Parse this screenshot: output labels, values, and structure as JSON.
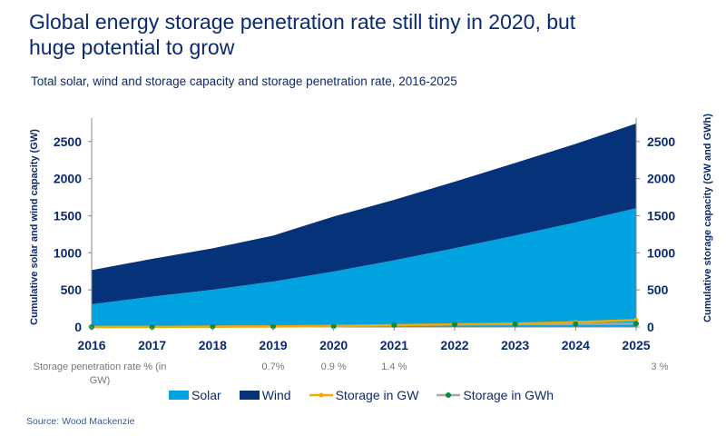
{
  "title": "Global energy storage penetration rate still tiny in 2020, but huge potential to grow",
  "subtitle": "Total solar, wind and storage capacity and storage penetration rate, 2016-2025",
  "source": "Source: Wood Mackenzie",
  "colors": {
    "solar": "#00a3e0",
    "wind": "#06327a",
    "storage_gw": "#f2a900",
    "storage_gwh_line": "#a6a6a6",
    "storage_gwh_marker": "#0a8a3c",
    "text": "#0b2a6e"
  },
  "penetration": {
    "title": "Storage penetration rate % (in GW)",
    "labels": [
      {
        "year": 2019,
        "label": "0.7%"
      },
      {
        "year": 2020,
        "label": "0.9 %"
      },
      {
        "year": 2021,
        "label": "1.4 %"
      },
      {
        "year": 2025,
        "label": "3 %"
      }
    ]
  },
  "chart_data": {
    "type": "area",
    "x": [
      2016,
      2017,
      2018,
      2019,
      2020,
      2021,
      2022,
      2023,
      2024,
      2025
    ],
    "series": [
      {
        "name": "Solar",
        "type": "stacked-area",
        "axis": "left",
        "values": [
          306,
          408,
          502,
          612,
          747,
          898,
          1061,
          1232,
          1408,
          1600
        ]
      },
      {
        "name": "Wind",
        "type": "stacked-area",
        "axis": "left",
        "values": [
          461,
          510,
          559,
          620,
          742,
          815,
          897,
          979,
          1060,
          1141
        ]
      },
      {
        "name": "Storage in GW",
        "type": "line",
        "axis": "right",
        "values": [
          1,
          2,
          5,
          8,
          15,
          25,
          35,
          45,
          65,
          94
        ]
      },
      {
        "name": "Storage in GWh",
        "type": "line",
        "axis": "right",
        "values": [
          0,
          2,
          6,
          8,
          10,
          25,
          35,
          38,
          40,
          45
        ]
      }
    ],
    "ylabel_left": "Cumulative solar and wind capacity (GW)",
    "ylabel_right": "Cumulative storage capacity (GW and GWh)",
    "ylim": [
      0,
      2800
    ],
    "yticks": [
      0,
      500,
      1000,
      1500,
      2000,
      2500
    ],
    "grid": false,
    "legend": "bottom"
  }
}
